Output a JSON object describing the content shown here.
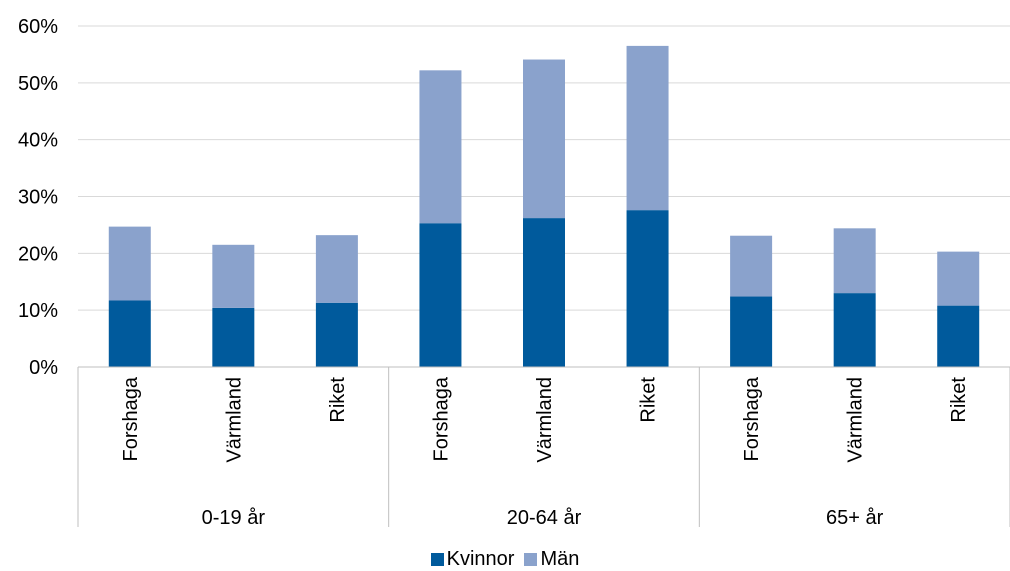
{
  "chart_data": {
    "type": "bar",
    "stacked": true,
    "groups": [
      {
        "label": "0-19 år",
        "categories": [
          "Forshaga",
          "Värmland",
          "Riket"
        ]
      },
      {
        "label": "20-64 år",
        "categories": [
          "Forshaga",
          "Värmland",
          "Riket"
        ]
      },
      {
        "label": "65+ år",
        "categories": [
          "Forshaga",
          "Värmland",
          "Riket"
        ]
      }
    ],
    "series": [
      {
        "name": "Kvinnor",
        "color": "#005a9c",
        "values": [
          11.7,
          10.4,
          11.3,
          25.3,
          26.2,
          27.6,
          12.4,
          13.0,
          10.8
        ]
      },
      {
        "name": "Män",
        "color": "#8aa2cc",
        "values": [
          13.0,
          11.1,
          11.9,
          26.9,
          27.9,
          28.9,
          10.7,
          11.4,
          9.5
        ]
      }
    ],
    "yticks": [
      "0%",
      "10%",
      "20%",
      "30%",
      "40%",
      "50%",
      "60%"
    ],
    "ylim": [
      0,
      60
    ],
    "grid": true,
    "legend_position": "bottom"
  }
}
